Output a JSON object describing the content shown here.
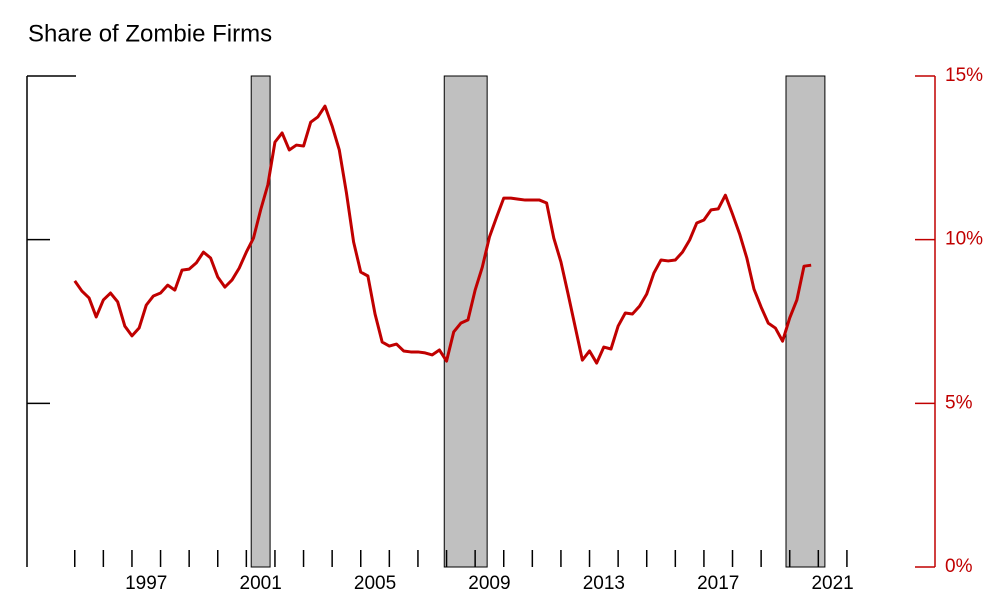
{
  "chart_data": {
    "type": "line",
    "title": "Share of Zombie Firms",
    "x": [
      1995,
      1995.25,
      1995.5,
      1995.75,
      1996,
      1996.25,
      1996.5,
      1996.75,
      1997,
      1997.25,
      1997.5,
      1997.75,
      1998,
      1998.25,
      1998.5,
      1998.75,
      1999,
      1999.25,
      1999.5,
      1999.75,
      2000,
      2000.25,
      2000.5,
      2000.75,
      2001,
      2001.25,
      2001.5,
      2001.75,
      2002,
      2002.25,
      2002.5,
      2002.75,
      2003,
      2003.25,
      2003.5,
      2003.75,
      2004,
      2004.25,
      2004.5,
      2004.75,
      2005,
      2005.25,
      2005.5,
      2005.75,
      2006,
      2006.25,
      2006.5,
      2006.75,
      2007,
      2007.25,
      2007.5,
      2007.75,
      2008,
      2008.25,
      2008.5,
      2008.75,
      2009,
      2009.25,
      2009.5,
      2009.75,
      2010,
      2010.25,
      2010.5,
      2010.75,
      2011,
      2011.25,
      2011.5,
      2011.75,
      2012,
      2012.25,
      2012.5,
      2012.75,
      2013,
      2013.25,
      2013.5,
      2013.75,
      2014,
      2014.25,
      2014.5,
      2014.75,
      2015,
      2015.25,
      2015.5,
      2015.75,
      2016,
      2016.25,
      2016.5,
      2016.75,
      2017,
      2017.25,
      2017.5,
      2017.75,
      2018,
      2018.25,
      2018.5,
      2018.75,
      2019,
      2019.25,
      2019.5,
      2019.75,
      2020,
      2020.25,
      2020.5,
      2020.75
    ],
    "series": [
      {
        "color": "#c00000",
        "axis": "y2",
        "values": [
          8.74,
          8.43,
          8.22,
          7.64,
          8.16,
          8.37,
          8.1,
          7.36,
          7.06,
          7.3,
          8.0,
          8.28,
          8.37,
          8.61,
          8.46,
          9.07,
          9.1,
          9.29,
          9.62,
          9.44,
          8.86,
          8.55,
          8.77,
          9.13,
          9.62,
          10.05,
          10.91,
          11.67,
          12.98,
          13.26,
          12.74,
          12.89,
          12.86,
          13.59,
          13.75,
          14.08,
          13.47,
          12.74,
          11.43,
          9.93,
          9.01,
          8.89,
          7.73,
          6.87,
          6.75,
          6.81,
          6.6,
          6.57,
          6.57,
          6.54,
          6.48,
          6.63,
          6.29,
          7.18,
          7.45,
          7.55,
          8.46,
          9.16,
          10.08,
          10.69,
          11.27,
          11.27,
          11.24,
          11.21,
          11.21,
          11.21,
          11.12,
          10.05,
          9.32,
          8.34,
          7.33,
          6.32,
          6.6,
          6.23,
          6.72,
          6.66,
          7.36,
          7.76,
          7.73,
          7.97,
          8.34,
          8.98,
          9.38,
          9.35,
          9.38,
          9.62,
          9.99,
          10.51,
          10.6,
          10.91,
          10.94,
          11.36,
          10.78,
          10.17,
          9.44,
          8.49,
          7.94,
          7.45,
          7.3,
          6.9,
          7.61,
          8.16,
          9.19,
          9.22
        ]
      }
    ],
    "shaded_periods": [
      [
        2001.17,
        2001.83
      ],
      [
        2007.92,
        2009.42
      ],
      [
        2019.87,
        2021.23
      ]
    ],
    "xlim": [
      1993.33,
      2025.08
    ],
    "xticks": [
      1995,
      1996,
      1997,
      1998,
      1999,
      2000,
      2001,
      2002,
      2003,
      2004,
      2005,
      2006,
      2007,
      2008,
      2009,
      2010,
      2011,
      2012,
      2013,
      2014,
      2015,
      2016,
      2017,
      2018,
      2019,
      2020,
      2021,
      2022
    ],
    "xtick_labels": [
      {
        "value": 1997.5,
        "label": "1997"
      },
      {
        "value": 2001.5,
        "label": "2001"
      },
      {
        "value": 2005.5,
        "label": "2005"
      },
      {
        "value": 2009.5,
        "label": "2009"
      },
      {
        "value": 2013.5,
        "label": "2013"
      },
      {
        "value": 2017.5,
        "label": "2017"
      },
      {
        "value": 2021.5,
        "label": "2021"
      }
    ],
    "y2lim": [
      0,
      15
    ],
    "y2ticks": [
      {
        "value": 0,
        "label": "0%"
      },
      {
        "value": 5,
        "label": "5%"
      },
      {
        "value": 10,
        "label": "10%"
      },
      {
        "value": 15,
        "label": "15%"
      }
    ]
  }
}
